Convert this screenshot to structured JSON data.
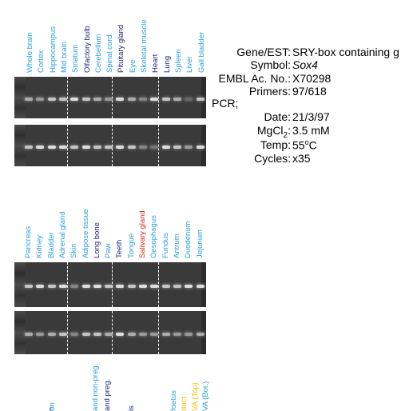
{
  "colors": {
    "tissue_default": "#2a9fd6",
    "tissue_highlight": "#1c1c7a",
    "tissue_salivary": "#e0241c",
    "tissue_yellow": "#f2c200"
  },
  "panel1": {
    "tissues": [
      {
        "label": "Whole brain",
        "color": "default"
      },
      {
        "label": "Cortex",
        "color": "default"
      },
      {
        "label": "Hippocampus",
        "color": "default"
      },
      {
        "label": "Mid brain",
        "color": "default"
      },
      {
        "label": "Striatum",
        "color": "default"
      },
      {
        "label": "Olfactory bulb",
        "color": "highlight"
      },
      {
        "label": "Cerebellum",
        "color": "default"
      },
      {
        "label": "Spinal cord",
        "color": "default"
      },
      {
        "label": "Pituitary gland",
        "color": "highlight"
      },
      {
        "label": "Eye",
        "color": "default"
      },
      {
        "label": "Skeletal muscle",
        "color": "default"
      },
      {
        "label": "Heart",
        "color": "highlight"
      },
      {
        "label": "Lung",
        "color": "highlight"
      },
      {
        "label": "Spleen",
        "color": "default"
      },
      {
        "label": "Liver",
        "color": "default"
      },
      {
        "label": "Gall bladder",
        "color": "default"
      }
    ]
  },
  "panel2": {
    "tissues": [
      {
        "label": "Pancreas",
        "color": "default"
      },
      {
        "label": "Kidney",
        "color": "default"
      },
      {
        "label": "Bladder",
        "color": "default"
      },
      {
        "label": "Adrenal gland",
        "color": "default"
      },
      {
        "label": "Skin",
        "color": "default"
      },
      {
        "label": "Adipose tissue",
        "color": "default"
      },
      {
        "label": "Long bone",
        "color": "highlight"
      },
      {
        "label": "Paw",
        "color": "default"
      },
      {
        "label": "Teeth",
        "color": "highlight"
      },
      {
        "label": "Tongue",
        "color": "default"
      },
      {
        "label": "Salivary gland",
        "color": "salivary"
      },
      {
        "label": "Oesophagus",
        "color": "default"
      },
      {
        "label": "Fundus",
        "color": "default"
      },
      {
        "label": "Antrum",
        "color": "default"
      },
      {
        "label": "Duodenum",
        "color": "default"
      },
      {
        "label": "Jejunum",
        "color": "default"
      }
    ]
  },
  "panel3": {
    "tissues": [
      {
        "label": "n",
        "color": "highlight"
      },
      {
        "label": "on",
        "color": "default"
      },
      {
        "label": "and non-preg.",
        "color": "default"
      },
      {
        "label": "and preg.",
        "color": "highlight"
      },
      {
        "label": "is",
        "color": "highlight"
      },
      {
        "label": "foetus",
        "color": "default"
      },
      {
        "label": "duct",
        "color": "yellow"
      },
      {
        "label": "VA (Top)",
        "color": "yellow"
      },
      {
        "label": "VA (Bot.)",
        "color": "default"
      }
    ]
  },
  "info": {
    "gene_label": "Gene/EST:",
    "gene_value": "SRY-box containing g",
    "symbol_label": "Symbol:",
    "symbol_value": "Sox4",
    "embl_label": "EMBL Ac. No.:",
    "embl_value": "X70298",
    "primers_label": "Primers:",
    "primers_value": "97/618",
    "pcr_label": "PCR;",
    "date_label": "Date:",
    "date_value": "21/3/97",
    "mgcl_label_prefix": "MgCl",
    "mgcl_label_sub": "2",
    "mgcl_label_colon": ":",
    "mgcl_value": "3.5 mM",
    "temp_label": "Temp:",
    "temp_value_num": "55",
    "temp_value_deg": "o",
    "temp_value_unit": "C",
    "cycles_label": "Cycles:",
    "cycles_value": "x35"
  },
  "gels": {
    "panel1_row1_intensity": [
      0.7,
      0.6,
      0.8,
      0.8,
      0.9,
      0.8,
      0.7,
      0.6,
      0.9,
      0.7,
      0.5,
      0.9,
      0.8,
      0.7,
      0.3,
      0.8
    ],
    "panel1_row2_intensity": [
      0.8,
      0.9,
      0.9,
      0.9,
      0.8,
      0.9,
      0.8,
      0.8,
      0.9,
      0.8,
      0.5,
      0.4,
      0.9,
      0.8,
      0.6,
      0.9
    ],
    "panel2_row1_intensity": [
      0.8,
      0.9,
      0.8,
      0.9,
      0.5,
      0.9,
      0.9,
      0.8,
      0.9,
      0.8,
      0.9,
      0.9,
      0.8,
      0.8,
      0.9,
      0.9
    ],
    "panel2_row2_intensity": [
      0.7,
      0.6,
      0.7,
      0.8,
      0.5,
      0.8,
      0.8,
      0.7,
      0.9,
      0.7,
      0.6,
      0.6,
      0.7,
      0.6,
      0.6,
      0.7
    ]
  }
}
